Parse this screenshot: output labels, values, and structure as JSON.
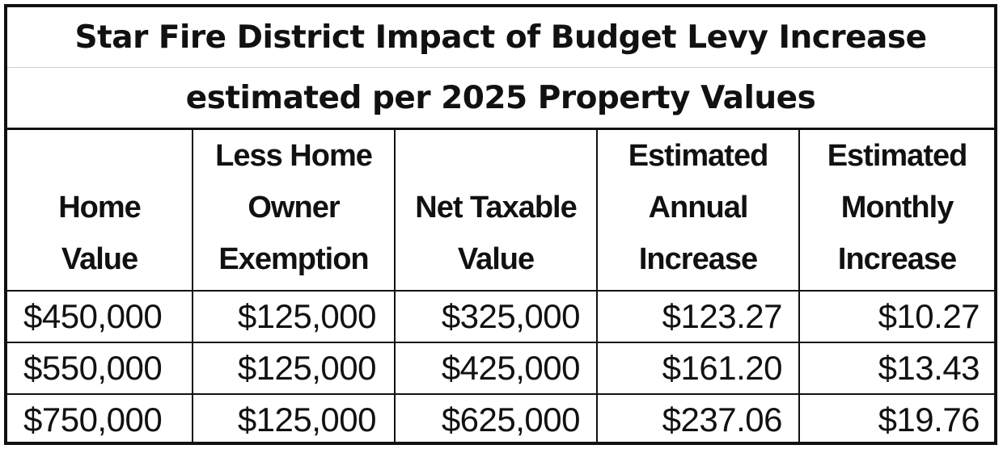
{
  "title": {
    "line1": "Star Fire District Impact of Budget Levy Increase",
    "line2": "estimated per 2025 Property Values"
  },
  "headers": [
    [
      "Home",
      "Value"
    ],
    [
      "Less Home",
      "Owner",
      "Exemption"
    ],
    [
      "Net Taxable",
      "Value"
    ],
    [
      "Estimated",
      "Annual",
      "Increase"
    ],
    [
      "Estimated",
      "Monthly",
      "Increase"
    ]
  ],
  "rows": [
    [
      "$450,000",
      "$125,000",
      "$325,000",
      "$123.27",
      "$10.27"
    ],
    [
      "$550,000",
      "$125,000",
      "$425,000",
      "$161.20",
      "$13.43"
    ],
    [
      "$750,000",
      "$125,000",
      "$625,000",
      "$237.06",
      "$19.76"
    ]
  ]
}
